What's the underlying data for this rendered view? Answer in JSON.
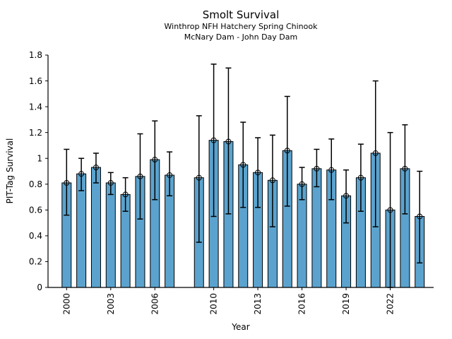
{
  "chart_data": {
    "type": "bar",
    "title": "Smolt Survival",
    "subtitle1": "Winthrop NFH Hatchery Spring Chinook",
    "subtitle2": "McNary Dam - John Day Dam",
    "xlabel": "Year",
    "ylabel": "PIT-Tag Survival",
    "ylim": [
      0,
      1.8
    ],
    "xlim": [
      1998.7,
      2025
    ],
    "grid": false,
    "legend": null,
    "bar_color": "#5BA3CE",
    "bar_edge_color": "#000000",
    "errorbar_color": "#000000",
    "y_ticks": [
      0,
      0.2,
      0.4,
      0.6,
      0.8,
      1,
      1.2,
      1.4,
      1.6,
      1.8
    ],
    "y_tick_labels": [
      "0",
      "0.2",
      "0.4",
      "0.6",
      "0.8",
      "1",
      "1.2",
      "1.4",
      "1.6",
      "1.8"
    ],
    "x_ticks": [
      2000,
      2003,
      2006,
      2010,
      2013,
      2016,
      2019,
      2022
    ],
    "x_tick_labels": [
      "2000",
      "2003",
      "2006",
      "2010",
      "2013",
      "2016",
      "2019",
      "2022"
    ],
    "missing_years": [
      2008
    ],
    "series": [
      {
        "name": "PIT-Tag Survival",
        "points": [
          {
            "year": 2000,
            "value": 0.81,
            "ci_low": 0.56,
            "ci_high": 1.07
          },
          {
            "year": 2001,
            "value": 0.88,
            "ci_low": 0.75,
            "ci_high": 1.0
          },
          {
            "year": 2002,
            "value": 0.93,
            "ci_low": 0.81,
            "ci_high": 1.04
          },
          {
            "year": 2003,
            "value": 0.81,
            "ci_low": 0.72,
            "ci_high": 0.89
          },
          {
            "year": 2004,
            "value": 0.72,
            "ci_low": 0.59,
            "ci_high": 0.85
          },
          {
            "year": 2005,
            "value": 0.86,
            "ci_low": 0.53,
            "ci_high": 1.19
          },
          {
            "year": 2006,
            "value": 0.99,
            "ci_low": 0.68,
            "ci_high": 1.29
          },
          {
            "year": 2007,
            "value": 0.87,
            "ci_low": 0.71,
            "ci_high": 1.05
          },
          {
            "year": 2008,
            "value": null,
            "ci_low": null,
            "ci_high": null
          },
          {
            "year": 2009,
            "value": 0.85,
            "ci_low": 0.35,
            "ci_high": 1.33
          },
          {
            "year": 2010,
            "value": 1.14,
            "ci_low": 0.55,
            "ci_high": 1.73
          },
          {
            "year": 2011,
            "value": 1.13,
            "ci_low": 0.57,
            "ci_high": 1.7
          },
          {
            "year": 2012,
            "value": 0.95,
            "ci_low": 0.62,
            "ci_high": 1.28
          },
          {
            "year": 2013,
            "value": 0.89,
            "ci_low": 0.62,
            "ci_high": 1.16
          },
          {
            "year": 2014,
            "value": 0.83,
            "ci_low": 0.47,
            "ci_high": 1.18
          },
          {
            "year": 2015,
            "value": 1.06,
            "ci_low": 0.63,
            "ci_high": 1.48
          },
          {
            "year": 2016,
            "value": 0.8,
            "ci_low": 0.68,
            "ci_high": 0.93
          },
          {
            "year": 2017,
            "value": 0.92,
            "ci_low": 0.78,
            "ci_high": 1.07
          },
          {
            "year": 2018,
            "value": 0.91,
            "ci_low": 0.68,
            "ci_high": 1.15
          },
          {
            "year": 2019,
            "value": 0.71,
            "ci_low": 0.5,
            "ci_high": 0.91
          },
          {
            "year": 2020,
            "value": 0.85,
            "ci_low": 0.59,
            "ci_high": 1.11
          },
          {
            "year": 2021,
            "value": 1.04,
            "ci_low": 0.47,
            "ci_high": 1.6
          },
          {
            "year": 2022,
            "value": 0.6,
            "ci_low": 0.0,
            "ci_high": 1.2
          },
          {
            "year": 2023,
            "value": 0.92,
            "ci_low": 0.57,
            "ci_high": 1.26
          },
          {
            "year": 2024,
            "value": 0.55,
            "ci_low": 0.19,
            "ci_high": 0.9
          }
        ]
      }
    ]
  }
}
